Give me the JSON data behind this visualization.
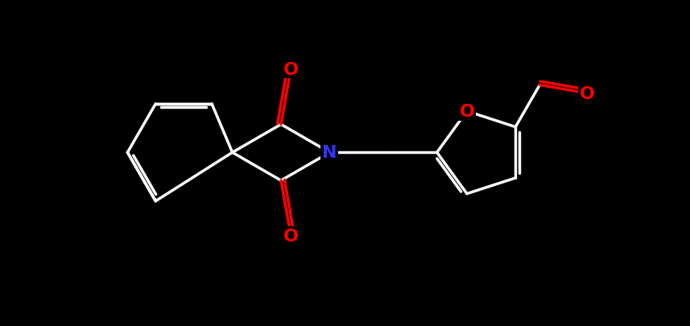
{
  "background_color": "#000000",
  "bond_color": "#ffffff",
  "N_color": "#3333ff",
  "O_color": "#ff0000",
  "line_width": 2.5,
  "figsize": [
    8.57,
    4.06
  ],
  "dpi": 100,
  "xlim": [
    -6.5,
    6.5
  ],
  "ylim": [
    -3.2,
    3.2
  ]
}
